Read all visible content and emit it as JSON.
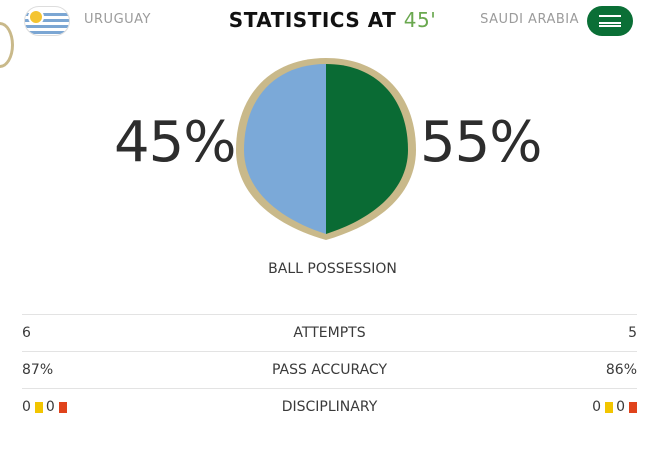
{
  "header": {
    "title_prefix": "STATISTICS AT ",
    "title_minute": "45'",
    "home_team": "URUGUAY",
    "away_team": "SAUDI ARABIA"
  },
  "possession": {
    "home_pct_label": "45%",
    "away_pct_label": "55%",
    "home_fraction": 0.45,
    "away_fraction": 0.55,
    "label": "BALL POSSESSION",
    "home_color": "#7ba9d8",
    "away_color": "#0a6b34",
    "border_color": "#c9b98a"
  },
  "stats": {
    "attempts": {
      "label": "ATTEMPTS",
      "home": "6",
      "away": "5"
    },
    "pass_accuracy": {
      "label": "PASS ACCURACY",
      "home": "87%",
      "away": "86%"
    },
    "disciplinary": {
      "label": "DISCIPLINARY",
      "home_yellow": "0",
      "home_red": "0",
      "away_yellow": "0",
      "away_red": "0"
    }
  },
  "icons": {
    "home_flag": "uruguay-flag-icon",
    "away_flag": "saudi-arabia-flag-icon",
    "yellow_card": "yellow-card-icon",
    "red_card": "red-card-icon"
  }
}
